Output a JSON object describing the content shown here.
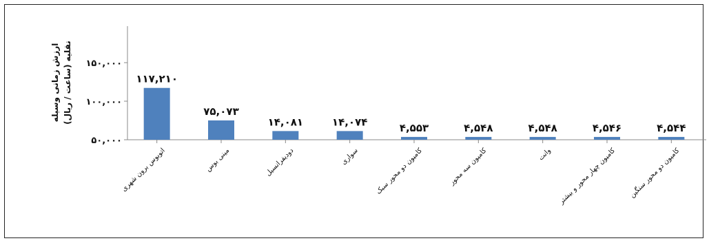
{
  "chart_data": {
    "type": "bar",
    "ylabel_lines": [
      "ارزش زمانی وسیله",
      "نقلیه (ساعت / ریال)"
    ],
    "categories": [
      "اتوبوس برون شهری",
      "مینی بوس",
      "دودیفرانسیل",
      "سواری",
      "کامیون دو محور سبک",
      "کامیون سه محور",
      "وانت",
      "کامیون چهار محور و بیشتر",
      "کامیون دو محور سنگین"
    ],
    "values": [
      117210,
      75073,
      14081,
      14074,
      4553,
      4548,
      4548,
      4546,
      4544
    ],
    "data_labels": [
      "۱۱۷,۲۱۰",
      "۷۵,۰۷۳",
      "۱۴,۰۸۱",
      "۱۴,۰۷۴",
      "۴,۵۵۳",
      "۴,۵۴۸",
      "۴,۵۴۸",
      "۴,۵۴۶",
      "۴,۵۴۴"
    ],
    "yticks": [
      50000,
      100000,
      150000
    ],
    "ytick_labels": [
      "۵۰,۰۰۰",
      "۱۰۰,۰۰۰",
      "۱۵۰,۰۰۰"
    ],
    "ylim": [
      0,
      200000
    ],
    "grid": false,
    "bar_color": "#4f81bd"
  }
}
